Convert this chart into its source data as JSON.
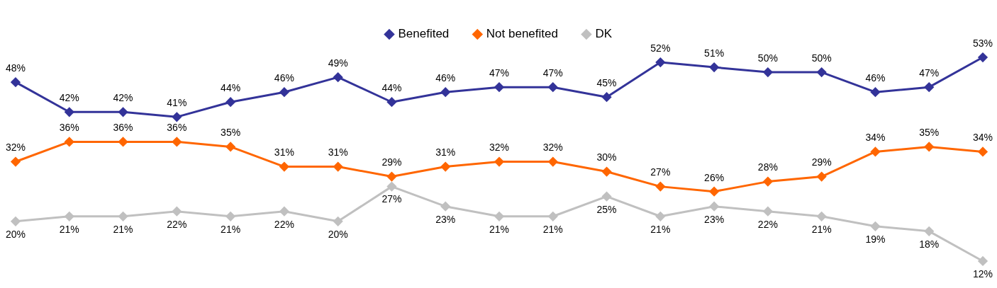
{
  "chart_data": {
    "type": "line",
    "categories": [
      null,
      null,
      null,
      null,
      null,
      null,
      null,
      null,
      null,
      null,
      null,
      null,
      null,
      null,
      null,
      null,
      null,
      null,
      null
    ],
    "series": [
      {
        "name": "Benefited",
        "color": "#333399",
        "values": [
          48,
          42,
          42,
          41,
          44,
          46,
          49,
          44,
          46,
          47,
          47,
          45,
          52,
          51,
          50,
          50,
          46,
          47,
          53
        ],
        "value_labels": [
          "48%",
          "42%",
          "42%",
          "41%",
          "44%",
          "46%",
          "49%",
          "44%",
          "46%",
          "47%",
          "47%",
          "45%",
          "52%",
          "51%",
          "50%",
          "50%",
          "46%",
          "47%",
          "53%"
        ]
      },
      {
        "name": "Not benefited",
        "color": "#ff6600",
        "values": [
          32,
          36,
          36,
          36,
          35,
          31,
          31,
          29,
          31,
          32,
          32,
          30,
          27,
          26,
          28,
          29,
          34,
          35,
          34
        ],
        "value_labels": [
          "32%",
          "36%",
          "36%",
          "36%",
          "35%",
          "31%",
          "31%",
          "29%",
          "31%",
          "32%",
          "32%",
          "30%",
          "27%",
          "26%",
          "28%",
          "29%",
          "34%",
          "35%",
          "34%"
        ]
      },
      {
        "name": "DK",
        "color": "#c0c0c0",
        "values": [
          20,
          21,
          21,
          22,
          21,
          22,
          20,
          27,
          23,
          21,
          21,
          25,
          21,
          23,
          22,
          21,
          19,
          18,
          12
        ],
        "value_labels": [
          "20%",
          "21%",
          "21%",
          "22%",
          "21%",
          "22%",
          "20%",
          "27%",
          "23%",
          "21%",
          "21%",
          "25%",
          "21%",
          "23%",
          "22%",
          "21%",
          "19%",
          "18%",
          "12%"
        ]
      }
    ],
    "marker": "diamond",
    "line_style": "solid",
    "legend": "top"
  }
}
